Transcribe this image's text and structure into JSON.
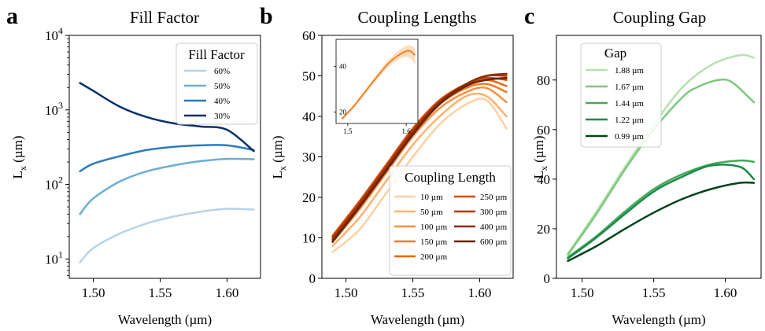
{
  "chart_data": [
    {
      "type": "line",
      "panel_letter": "a",
      "title": "Fill Factor",
      "xlabel": "Wavelength (µm)",
      "ylabel": "L",
      "ylabel_sub": "x",
      "ylabel_unit": " (µm)",
      "yscale": "log",
      "xlim": [
        1.482,
        1.625
      ],
      "ylim": [
        5.5,
        10000
      ],
      "xticks": [
        1.5,
        1.55,
        1.6
      ],
      "xtick_labels": [
        "1.50",
        "1.55",
        "1.60"
      ],
      "yticks": [
        10,
        100,
        1000,
        10000
      ],
      "ytick_base": "10",
      "ytick_exponents": [
        "1",
        "2",
        "3",
        "4"
      ],
      "legend_title": "Fill Factor",
      "legend_position": "top-right",
      "series": [
        {
          "name": "60%",
          "color": "#b7d4ea",
          "x": [
            1.49,
            1.5,
            1.52,
            1.54,
            1.56,
            1.58,
            1.6,
            1.62
          ],
          "y": [
            9,
            14,
            22,
            30,
            37,
            43,
            47,
            46
          ]
        },
        {
          "name": "50%",
          "color": "#6aaed6",
          "x": [
            1.49,
            1.5,
            1.52,
            1.54,
            1.56,
            1.58,
            1.6,
            1.62
          ],
          "y": [
            40,
            65,
            110,
            150,
            180,
            205,
            220,
            218
          ]
        },
        {
          "name": "40%",
          "color": "#2b7bba",
          "x": [
            1.49,
            1.5,
            1.52,
            1.54,
            1.56,
            1.58,
            1.6,
            1.62
          ],
          "y": [
            150,
            190,
            240,
            290,
            320,
            335,
            335,
            290
          ]
        },
        {
          "name": "30%",
          "color": "#08306b",
          "x": [
            1.49,
            1.5,
            1.52,
            1.54,
            1.56,
            1.58,
            1.6,
            1.62
          ],
          "y": [
            2300,
            1800,
            1100,
            800,
            660,
            600,
            540,
            280
          ]
        }
      ]
    },
    {
      "type": "line",
      "panel_letter": "b",
      "title": "Coupling Lengths",
      "xlabel": "Wavelength (µm)",
      "ylabel": "L",
      "ylabel_sub": "x",
      "ylabel_unit": " (µm)",
      "xlim": [
        1.482,
        1.625
      ],
      "ylim": [
        0,
        60
      ],
      "xticks": [
        1.5,
        1.55,
        1.6
      ],
      "xtick_labels": [
        "1.50",
        "1.55",
        "1.60"
      ],
      "yticks": [
        0,
        10,
        20,
        30,
        40,
        50,
        60
      ],
      "ytick_labels": [
        "0",
        "10",
        "20",
        "30",
        "40",
        "50",
        "60"
      ],
      "legend_title": "Coupling Length",
      "legend_position": "lower-right",
      "series": [
        {
          "name": "10 µm",
          "color": "#fdd0a2",
          "x": [
            1.49,
            1.51,
            1.53,
            1.55,
            1.57,
            1.59,
            1.605,
            1.62
          ],
          "y": [
            6.5,
            12,
            21,
            30,
            38,
            43,
            44,
            37
          ]
        },
        {
          "name": "50 µm",
          "color": "#fdb170",
          "x": [
            1.49,
            1.51,
            1.53,
            1.55,
            1.57,
            1.59,
            1.605,
            1.62
          ],
          "y": [
            8,
            15,
            24,
            33,
            40,
            45,
            45,
            40
          ]
        },
        {
          "name": "100 µm",
          "color": "#fd9040",
          "x": [
            1.49,
            1.51,
            1.53,
            1.55,
            1.57,
            1.59,
            1.605,
            1.62
          ],
          "y": [
            9,
            17,
            26,
            35,
            42,
            46,
            47,
            43.5
          ]
        },
        {
          "name": "150 µm",
          "color": "#f67a1e",
          "x": [
            1.49,
            1.51,
            1.53,
            1.55,
            1.57,
            1.59,
            1.605,
            1.62
          ],
          "y": [
            9.5,
            18,
            27,
            36,
            43,
            47,
            48,
            46
          ]
        },
        {
          "name": "200 µm",
          "color": "#ec6413",
          "x": [
            1.49,
            1.51,
            1.53,
            1.55,
            1.57,
            1.59,
            1.605,
            1.62
          ],
          "y": [
            10,
            18.5,
            27.5,
            36.5,
            43.5,
            47.5,
            49,
            47.5
          ]
        },
        {
          "name": "250 µm",
          "color": "#d94801",
          "x": [
            1.49,
            1.51,
            1.53,
            1.55,
            1.57,
            1.59,
            1.605,
            1.62
          ],
          "y": [
            10.5,
            19,
            28,
            37,
            44,
            48,
            49.5,
            49
          ]
        },
        {
          "name": "300 µm",
          "color": "#b13a03",
          "x": [
            1.49,
            1.51,
            1.53,
            1.55,
            1.57,
            1.59,
            1.605,
            1.62
          ],
          "y": [
            10,
            18.5,
            27.5,
            36.5,
            43.5,
            48,
            50,
            50
          ]
        },
        {
          "name": "400 µm",
          "color": "#8c2d04",
          "x": [
            1.49,
            1.51,
            1.53,
            1.55,
            1.57,
            1.59,
            1.605,
            1.62
          ],
          "y": [
            9.5,
            18,
            27,
            36,
            43.5,
            48,
            50,
            50.5
          ]
        },
        {
          "name": "600 µm",
          "color": "#6b2405",
          "x": [
            1.49,
            1.51,
            1.53,
            1.55,
            1.57,
            1.59,
            1.605,
            1.62
          ],
          "y": [
            9,
            17.5,
            26.5,
            35.5,
            43,
            47.5,
            49,
            49.5
          ]
        }
      ],
      "inset": {
        "xlim": [
          1.48,
          1.62
        ],
        "ylim": [
          15,
          52
        ],
        "xticks": [
          1.5,
          1.6
        ],
        "xtick_labels": [
          "1.5",
          "1.6"
        ],
        "yticks": [
          20,
          40
        ],
        "ytick_labels": [
          "20",
          "40"
        ],
        "color": "#f67a1e",
        "band_color": "#fdd0a2",
        "x": [
          1.49,
          1.51,
          1.53,
          1.55,
          1.57,
          1.59,
          1.605,
          1.615
        ],
        "y": [
          17,
          22.5,
          29,
          35.5,
          41.5,
          45.5,
          47,
          45
        ],
        "y_low": [
          16.3,
          21.7,
          28,
          34.3,
          40,
          43.5,
          44,
          41
        ],
        "y_high": [
          17.7,
          23.3,
          30,
          36.7,
          43,
          47.5,
          49.5,
          48
        ]
      }
    },
    {
      "type": "line",
      "panel_letter": "c",
      "title": "Coupling Gap",
      "xlabel": "Wavelength (µm)",
      "ylabel": "L",
      "ylabel_sub": "x",
      "ylabel_unit": " (µm)",
      "xlim": [
        1.482,
        1.625
      ],
      "ylim": [
        0,
        98
      ],
      "xticks": [
        1.5,
        1.55,
        1.6
      ],
      "xtick_labels": [
        "1.50",
        "1.55",
        "1.60"
      ],
      "yticks": [
        0,
        20,
        40,
        60,
        80
      ],
      "ytick_labels": [
        "0",
        "20",
        "40",
        "60",
        "80"
      ],
      "legend_title": "Gap",
      "legend_position": "top-left",
      "series": [
        {
          "name": "1.88 µm",
          "color": "#b5e1ae",
          "x": [
            1.49,
            1.51,
            1.53,
            1.55,
            1.57,
            1.59,
            1.61,
            1.62
          ],
          "y": [
            10,
            27,
            45,
            62,
            77,
            86,
            90,
            89
          ]
        },
        {
          "name": "1.67 µm",
          "color": "#7dc87e",
          "x": [
            1.49,
            1.51,
            1.53,
            1.55,
            1.57,
            1.58,
            1.595,
            1.605,
            1.62
          ],
          "y": [
            9.5,
            26,
            44,
            60,
            73,
            77,
            80,
            79,
            71
          ]
        },
        {
          "name": "1.44 µm",
          "color": "#41ab5d",
          "x": [
            1.49,
            1.51,
            1.53,
            1.55,
            1.57,
            1.59,
            1.61,
            1.62
          ],
          "y": [
            8.5,
            17,
            27,
            36,
            42,
            46,
            47.5,
            47
          ]
        },
        {
          "name": "1.22 µm",
          "color": "#1f8b48",
          "x": [
            1.49,
            1.51,
            1.53,
            1.55,
            1.57,
            1.59,
            1.61,
            1.62
          ],
          "y": [
            8,
            16.5,
            26,
            35,
            41,
            45.5,
            45,
            40
          ]
        },
        {
          "name": "0.99 µm",
          "color": "#00441b",
          "x": [
            1.49,
            1.51,
            1.53,
            1.55,
            1.57,
            1.59,
            1.61,
            1.62
          ],
          "y": [
            7,
            13,
            20,
            26.5,
            32,
            36,
            38.5,
            38.5
          ]
        }
      ]
    }
  ]
}
